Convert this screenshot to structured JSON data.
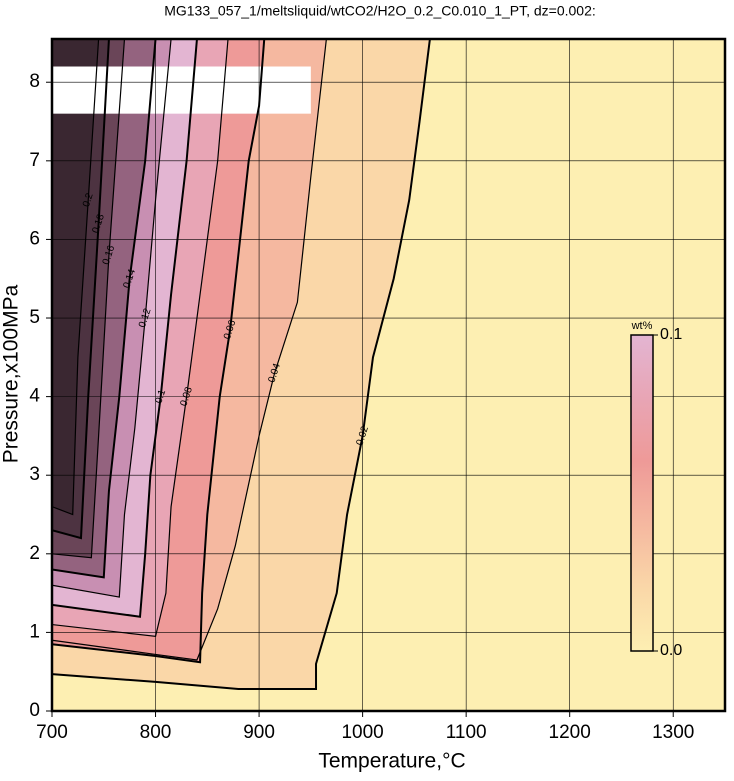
{
  "chart_data": {
    "type": "contour",
    "title": "MG133_057_1/meltsliquid/wtCO2/H2O_0.2_C0.010_1_PT, dz=0.002:",
    "xlabel": "Temperature,°C",
    "ylabel": "Pressure,x100MPa",
    "xlim": [
      700,
      1350
    ],
    "ylim": [
      0,
      8.55
    ],
    "xticks": [
      700,
      800,
      900,
      1000,
      1100,
      1200,
      1300
    ],
    "yticks": [
      0,
      1,
      2,
      3,
      4,
      5,
      6,
      7,
      8
    ],
    "grid": true,
    "background": "#fdefb2",
    "colorbar": {
      "label": "wt%",
      "clim": [
        0,
        0.1
      ],
      "ticks": [
        {
          "value": 0,
          "label": "0.0"
        },
        {
          "value": 0.1,
          "label": "0.1"
        }
      ]
    },
    "contours": [
      {
        "level": 0.02,
        "color": "#fad7a8",
        "x": [
          700,
          800,
          880,
          955,
          955,
          975,
          985,
          1000,
          1010,
          1030,
          1045,
          1055,
          1065
        ],
        "y": [
          0.47,
          0.37,
          0.28,
          0.28,
          0.6,
          1.5,
          2.5,
          3.5,
          4.5,
          5.5,
          6.5,
          7.5,
          8.55
        ]
      },
      {
        "level": 0.04,
        "color": "#f5b8a0",
        "x": [
          700,
          800,
          840,
          860,
          877,
          900,
          915,
          937,
          950,
          965
        ],
        "y": [
          0.9,
          0.72,
          0.65,
          1.3,
          2.1,
          3.5,
          4.3,
          5.2,
          6.8,
          8.55
        ]
      },
      {
        "level": 0.06,
        "color": "#ee9a98",
        "x": [
          700,
          800,
          843,
          845,
          850,
          862,
          872,
          890,
          900,
          905
        ],
        "y": [
          0.85,
          0.7,
          0.62,
          1.5,
          2.5,
          4,
          4.85,
          7,
          7.7,
          8.55
        ]
      },
      {
        "level": 0.08,
        "color": "#e8a5b5",
        "x": [
          700,
          800,
          810,
          815,
          830,
          845,
          860,
          870
        ],
        "y": [
          1.1,
          0.95,
          1.5,
          2.6,
          4,
          5.5,
          7,
          8.55
        ]
      },
      {
        "level": 0.1,
        "color": "#e3b5d2",
        "x": [
          700,
          785,
          790,
          795,
          805,
          815,
          830,
          840
        ],
        "y": [
          1.35,
          1.2,
          2,
          3,
          4,
          5.3,
          7,
          8.55
        ]
      },
      {
        "level": 0.12,
        "color": "#c88fb2",
        "x": [
          700,
          765,
          770,
          780,
          790,
          800,
          815
        ],
        "y": [
          1.6,
          1.45,
          2.5,
          3.6,
          5,
          6.5,
          8.55
        ]
      },
      {
        "level": 0.14,
        "color": "#94637f",
        "x": [
          700,
          750,
          755,
          765,
          775,
          790,
          800
        ],
        "y": [
          1.8,
          1.7,
          2.8,
          4,
          5.5,
          7,
          8.55
        ]
      },
      {
        "level": 0.16,
        "color": "#6a4558",
        "x": [
          700,
          738,
          745,
          755,
          770
        ],
        "y": [
          2.0,
          1.95,
          3.5,
          5.8,
          8.55
        ]
      },
      {
        "level": 0.18,
        "color": "#4d3341",
        "x": [
          700,
          728,
          735,
          745,
          755
        ],
        "y": [
          2.3,
          2.2,
          4,
          6.2,
          8.55
        ]
      },
      {
        "level": 0.2,
        "color": "#3a2731",
        "x": [
          700,
          720,
          725,
          735,
          745
        ],
        "y": [
          2.6,
          2.5,
          4.5,
          6.5,
          8.55
        ]
      }
    ]
  }
}
